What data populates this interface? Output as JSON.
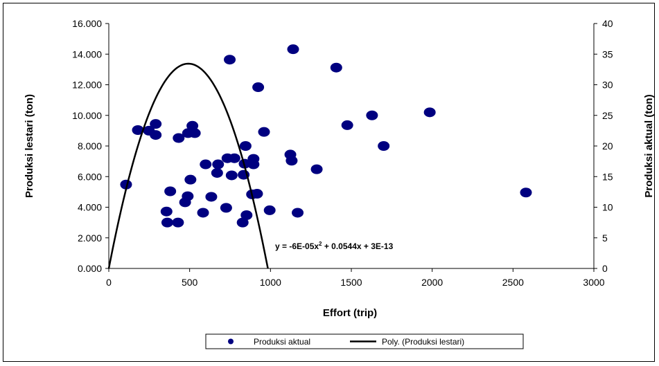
{
  "chart_data": {
    "type": "scatter",
    "title": "",
    "xlabel": "Effort (trip)",
    "ylabel_left": "Produksi  lestari (ton)",
    "ylabel_right": "Produksi aktual (ton)",
    "xlim": [
      0,
      3000
    ],
    "ylim_left": [
      0,
      16
    ],
    "ylim_right": [
      0,
      40
    ],
    "x_ticks": [
      "0",
      "500",
      "1000",
      "1500",
      "2000",
      "2500",
      "3000"
    ],
    "y_left_ticks": [
      "0.000",
      "2.000",
      "4.000",
      "6.000",
      "8.000",
      "10.000",
      "12.000",
      "14.000",
      "16.000"
    ],
    "y_right_ticks": [
      "0",
      "5",
      "10",
      "15",
      "20",
      "25",
      "30",
      "35",
      "40"
    ],
    "grid": false,
    "legend_position": "bottom",
    "legend": {
      "scatter_label": "Produksi aktual",
      "line_label": "Poly. (Produksi lestari)"
    },
    "equation": {
      "pre": "y = -6E-05x",
      "sup": "2",
      "post": " + 0.0544x + 3E-13"
    },
    "colors": {
      "points": "#000080",
      "line": "#000000"
    },
    "curve": {
      "a": -5.53e-05,
      "b": 0.0544,
      "c": 0,
      "x_range": [
        0,
        984
      ]
    },
    "series": [
      {
        "name": "Produksi aktual",
        "axis": "right",
        "points": [
          [
            107,
            13.7
          ],
          [
            180,
            22.6
          ],
          [
            248,
            22.5
          ],
          [
            290,
            23.6
          ],
          [
            290,
            21.8
          ],
          [
            357,
            9.3
          ],
          [
            362,
            7.5
          ],
          [
            380,
            12.6
          ],
          [
            428,
            7.5
          ],
          [
            432,
            21.3
          ],
          [
            472,
            10.8
          ],
          [
            488,
            11.8
          ],
          [
            490,
            22.1
          ],
          [
            505,
            14.5
          ],
          [
            517,
            23.3
          ],
          [
            532,
            22.1
          ],
          [
            583,
            9.1
          ],
          [
            599,
            17.0
          ],
          [
            634,
            11.7
          ],
          [
            670,
            15.6
          ],
          [
            676,
            17.0
          ],
          [
            726,
            9.9
          ],
          [
            734,
            18.0
          ],
          [
            748,
            34.1
          ],
          [
            760,
            15.2
          ],
          [
            777,
            18.0
          ],
          [
            828,
            7.5
          ],
          [
            834,
            15.3
          ],
          [
            840,
            17.1
          ],
          [
            846,
            20.0
          ],
          [
            852,
            8.7
          ],
          [
            886,
            12.1
          ],
          [
            895,
            17.0
          ],
          [
            895,
            17.9
          ],
          [
            917,
            12.2
          ],
          [
            924,
            29.6
          ],
          [
            960,
            22.3
          ],
          [
            995,
            9.5
          ],
          [
            1123,
            18.6
          ],
          [
            1131,
            17.6
          ],
          [
            1140,
            35.8
          ],
          [
            1168,
            9.1
          ],
          [
            1286,
            16.2
          ],
          [
            1407,
            32.8
          ],
          [
            1475,
            23.4
          ],
          [
            1628,
            25.0
          ],
          [
            1700,
            20.0
          ],
          [
            1985,
            25.5
          ],
          [
            2580,
            12.4
          ]
        ]
      }
    ]
  }
}
